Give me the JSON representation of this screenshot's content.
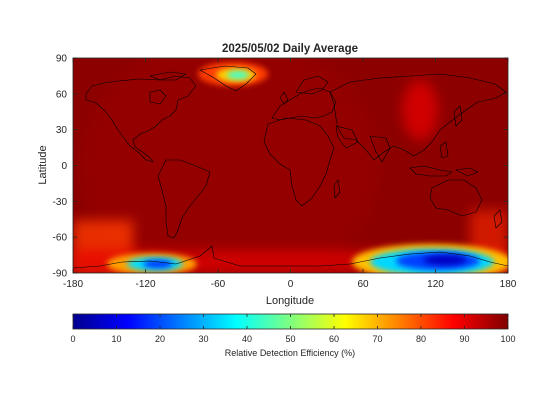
{
  "figure": {
    "title": "2025/05/02 Daily Average",
    "map": {
      "xlabel": "Longitude",
      "ylabel": "Latitude",
      "xlim": [
        -180,
        180
      ],
      "ylim": [
        -90,
        90
      ],
      "xticks": [
        -180,
        -120,
        -60,
        0,
        60,
        120,
        180
      ],
      "yticks": [
        -90,
        -60,
        -30,
        0,
        30,
        60,
        90
      ],
      "xticklabels": [
        "-180",
        "-120",
        "-60",
        "0",
        "60",
        "120",
        "180"
      ],
      "yticklabels": [
        "-90",
        "-60",
        "-30",
        "0",
        "30",
        "60",
        "90"
      ],
      "background_value": 97,
      "colors": {
        "frame": "#262626",
        "coastline": "#000000"
      }
    },
    "colorbar": {
      "label": "Relative Detection Efficiency (%)",
      "range": [
        0,
        100
      ],
      "ticks": [
        0,
        10,
        20,
        30,
        40,
        50,
        60,
        70,
        80,
        90,
        100
      ],
      "ticklabels": [
        "0",
        "10",
        "20",
        "30",
        "40",
        "50",
        "60",
        "70",
        "80",
        "90",
        "100"
      ],
      "colormap": "jet"
    }
  },
  "chart_data": {
    "type": "heatmap",
    "title": "2025/05/02 Daily Average",
    "xlabel": "Longitude",
    "ylabel": "Latitude",
    "xlim": [
      -180,
      180
    ],
    "ylim": [
      -90,
      90
    ],
    "colorbar_label": "Relative Detection Efficiency (%)",
    "colorbar_range": [
      0,
      100
    ],
    "background_value": 97,
    "features": [
      {
        "region": "Greenland",
        "lon": -40,
        "lat": 73,
        "min_value": 40
      },
      {
        "region": "Antarctica (East)",
        "lon": 125,
        "lat": -77,
        "min_value": 12
      },
      {
        "region": "Antarctica (West)",
        "lon": -110,
        "lat": -80,
        "min_value": 20
      },
      {
        "region": "Southern Ocean",
        "lon": -160,
        "lat": -60,
        "min_value": 82
      },
      {
        "region": "Tibet / East Asia",
        "lon": 85,
        "lat": 35,
        "min_value": 88
      }
    ]
  }
}
